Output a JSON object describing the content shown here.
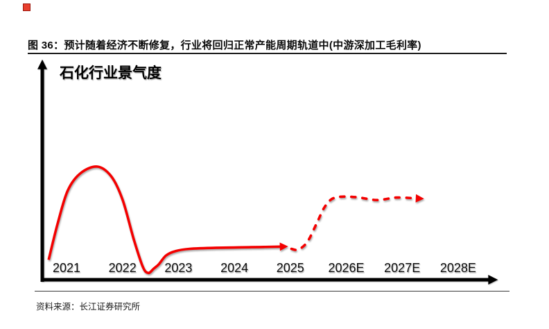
{
  "figure": {
    "caption": "图 36：预计随着经济不断修复，行业将回归正常产能周期轨道中(中游深加工毛利率)",
    "source": "资料来源：长江证券研究所"
  },
  "chart_data": {
    "type": "line",
    "title": "石化行业景气度",
    "xlabel": "",
    "ylabel": "石化行业景气度",
    "categories": [
      "2021",
      "2022",
      "2023",
      "2024",
      "2025",
      "2026E",
      "2027E",
      "2028E"
    ],
    "ylim": [
      0,
      100
    ],
    "y_axis_scale_visible": false,
    "grid": false,
    "legend_position": "none",
    "series": [
      {
        "name": "history_solid",
        "style": "solid",
        "color": "#f40000",
        "arrow_end": true,
        "points": [
          [
            2020.68,
            15
          ],
          [
            2020.84,
            48
          ],
          [
            2021.02,
            78
          ],
          [
            2021.25,
            94
          ],
          [
            2021.55,
            100
          ],
          [
            2021.8,
            91
          ],
          [
            2022.0,
            70
          ],
          [
            2022.2,
            34
          ],
          [
            2022.36,
            9
          ],
          [
            2022.46,
            3
          ],
          [
            2022.56,
            7
          ],
          [
            2022.65,
            11
          ],
          [
            2022.78,
            19
          ],
          [
            2022.95,
            23
          ],
          [
            2023.2,
            25
          ],
          [
            2023.7,
            26
          ],
          [
            2024.3,
            26.5
          ],
          [
            2024.82,
            27
          ]
        ]
      },
      {
        "name": "forecast_dashed",
        "style": "dashed",
        "color": "#f40000",
        "arrow_end": true,
        "points": [
          [
            2025.02,
            25
          ],
          [
            2025.14,
            24.3
          ],
          [
            2025.3,
            31
          ],
          [
            2025.46,
            47
          ],
          [
            2025.6,
            62
          ],
          [
            2025.73,
            70
          ],
          [
            2025.9,
            72.5
          ],
          [
            2026.2,
            72
          ],
          [
            2026.55,
            69.5
          ],
          [
            2026.9,
            71.8
          ],
          [
            2027.25,
            71
          ]
        ]
      }
    ]
  },
  "colors": {
    "curve_red": "#f40000",
    "axis_black": "#000000",
    "corner_marker_red": "#e8402e"
  }
}
